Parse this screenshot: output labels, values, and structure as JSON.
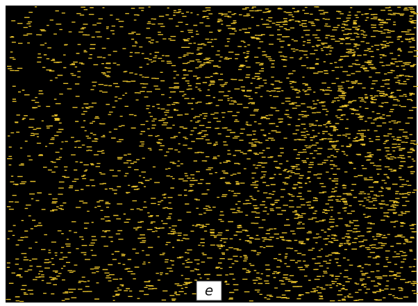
{
  "panel_label": "e"
}
